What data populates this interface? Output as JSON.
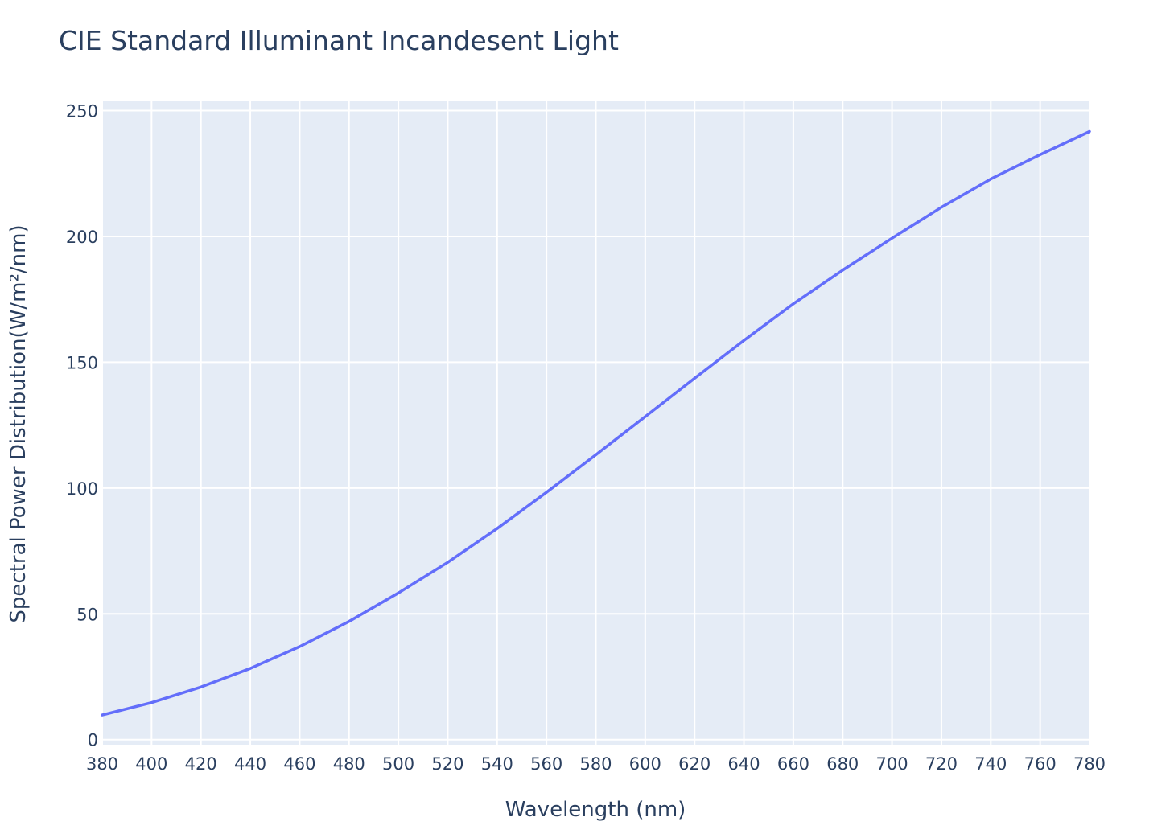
{
  "chart_data": {
    "type": "line",
    "title": "CIE Standard Illuminant Incandesent Light",
    "xlabel": "Wavelength (nm)",
    "ylabel": "Spectral Power Distribution(W/m²/nm)",
    "xlim": [
      380,
      780
    ],
    "ylim": [
      -2,
      254
    ],
    "x_ticks": [
      380,
      400,
      420,
      440,
      460,
      480,
      500,
      520,
      540,
      560,
      580,
      600,
      620,
      640,
      660,
      680,
      700,
      720,
      740,
      760,
      780
    ],
    "y_ticks": [
      0,
      50,
      100,
      150,
      200,
      250
    ],
    "grid": true,
    "legend": "none",
    "series": [
      {
        "color": "#636efa",
        "x": [
          380,
          400,
          420,
          440,
          460,
          480,
          500,
          520,
          540,
          560,
          580,
          600,
          620,
          640,
          660,
          680,
          700,
          720,
          740,
          760,
          780
        ],
        "y": [
          9.8,
          14.7,
          20.9,
          28.3,
          37.0,
          47.0,
          58.3,
          70.5,
          83.9,
          98.3,
          113.2,
          128.4,
          143.6,
          158.7,
          173.2,
          186.6,
          199.3,
          211.6,
          222.8,
          232.5,
          241.7
        ]
      }
    ]
  },
  "colors": {
    "plot_background": "#e5ecf6",
    "grid": "#ffffff",
    "text": "#2a3f5f",
    "line": "#636efa"
  }
}
